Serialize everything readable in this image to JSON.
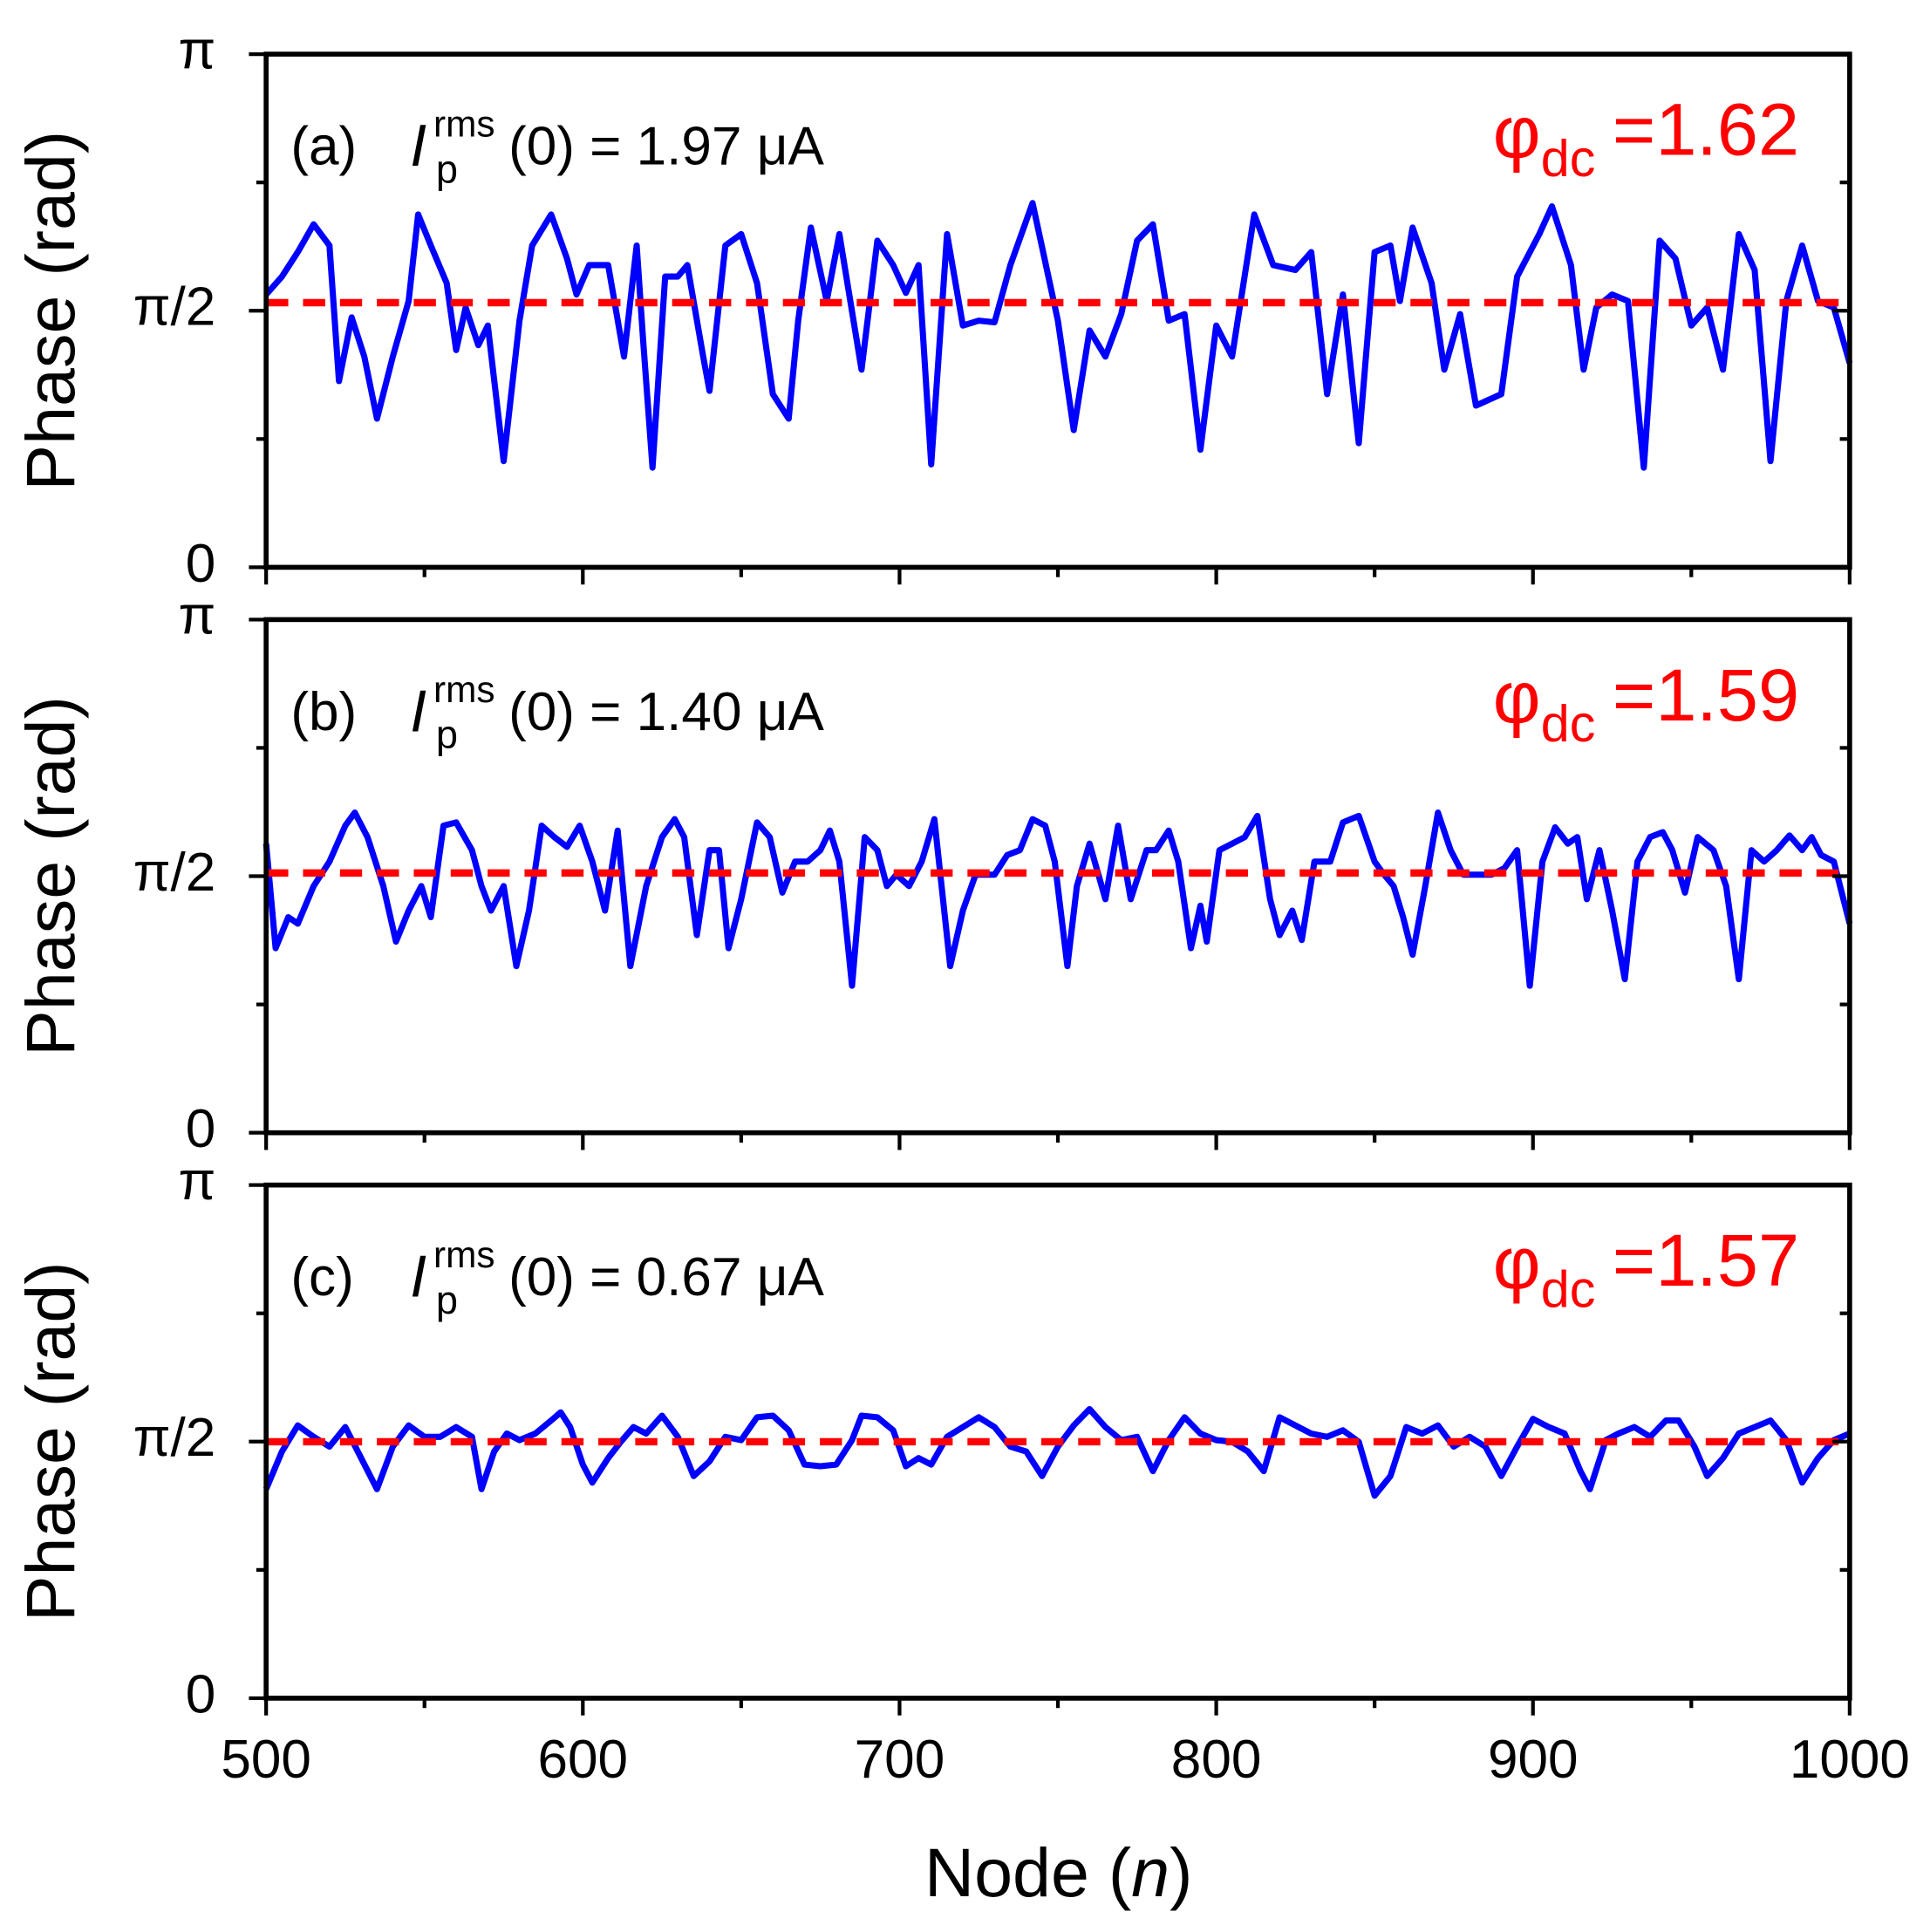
{
  "chart_data": [
    {
      "type": "line",
      "panel": "(a)",
      "current_label": {
        "symbol": "I",
        "sub": "p",
        "sup": "rms",
        "text": "(0) = 1.97 μA"
      },
      "dc_label": {
        "symbol": "φ",
        "sub": "dc"
      },
      "dc_line": {
        "value": 1.62,
        "label": "=1.62",
        "color": "#ff0000"
      },
      "ylabel": "Phase (rad)",
      "xlim": [
        500,
        1000
      ],
      "xticks": [
        500,
        600,
        700,
        800,
        900,
        1000
      ],
      "xminor": [
        550,
        650,
        750,
        850,
        950
      ],
      "ylim": [
        0,
        3.1416
      ],
      "yticks": [
        0,
        {
          "value": 1.5708,
          "label": "π/2"
        },
        {
          "value": 3.1416,
          "label": "π"
        }
      ],
      "yminor": [
        0.7854,
        2.3562
      ],
      "x": [
        500,
        505,
        510,
        515,
        520,
        523,
        527,
        531,
        535,
        540,
        545,
        548,
        552,
        557,
        560,
        563,
        567,
        570,
        575,
        580,
        584,
        590,
        595,
        598,
        602,
        608,
        613,
        617,
        619,
        622,
        626,
        630,
        633,
        638,
        640,
        645,
        650,
        655,
        660,
        665,
        668,
        672,
        677,
        681,
        688,
        693,
        698,
        702,
        706,
        710,
        715,
        720,
        725,
        730,
        735,
        742,
        750,
        755,
        760,
        765,
        770,
        775,
        780,
        785,
        790,
        795,
        800,
        805,
        812,
        818,
        825,
        830,
        835,
        840,
        845,
        850,
        855,
        858,
        862,
        868,
        872,
        877,
        882,
        890,
        895,
        902,
        906,
        912,
        916,
        920,
        925,
        930,
        935,
        940,
        945,
        950,
        955,
        960,
        965,
        970,
        975,
        980,
        985,
        990,
        995,
        1000
      ],
      "series": [
        {
          "color": "#0000ff",
          "values": [
            1.67,
            1.78,
            1.93,
            2.1,
            1.97,
            1.14,
            1.53,
            1.29,
            0.91,
            1.29,
            1.63,
            2.16,
            1.97,
            1.74,
            1.33,
            1.59,
            1.36,
            1.48,
            0.65,
            1.51,
            1.97,
            2.16,
            1.89,
            1.67,
            1.85,
            1.85,
            1.29,
            1.97,
            1.4,
            0.61,
            1.78,
            1.78,
            1.85,
            1.29,
            1.08,
            1.97,
            2.04,
            1.74,
            1.06,
            0.91,
            1.51,
            2.08,
            1.63,
            2.04,
            1.21,
            2.0,
            1.85,
            1.68,
            1.85,
            0.63,
            2.04,
            1.48,
            1.51,
            1.5,
            1.85,
            2.23,
            1.51,
            0.84,
            1.45,
            1.29,
            1.55,
            2.0,
            2.1,
            1.51,
            1.55,
            0.72,
            1.48,
            1.29,
            2.16,
            1.85,
            1.82,
            1.93,
            1.06,
            1.67,
            0.76,
            1.93,
            1.97,
            1.63,
            2.08,
            1.74,
            1.21,
            1.55,
            0.99,
            1.06,
            1.78,
            2.04,
            2.21,
            1.85,
            1.21,
            1.59,
            1.67,
            1.63,
            0.61,
            2.0,
            1.89,
            1.48,
            1.59,
            1.21,
            2.04,
            1.82,
            0.65,
            1.63,
            1.97,
            1.63,
            1.59,
            1.25
          ]
        }
      ]
    },
    {
      "type": "line",
      "panel": "(b)",
      "current_label": {
        "symbol": "I",
        "sub": "p",
        "sup": "rms",
        "text": "(0) = 1.40 μA"
      },
      "dc_label": {
        "symbol": "φ",
        "sub": "dc"
      },
      "dc_line": {
        "value": 1.59,
        "label": "=1.59",
        "color": "#ff0000"
      },
      "ylabel": "Phase (rad)",
      "xlim": [
        500,
        1000
      ],
      "xticks": [
        500,
        600,
        700,
        800,
        900,
        1000
      ],
      "xminor": [
        550,
        650,
        750,
        850,
        950
      ],
      "ylim": [
        0,
        3.1416
      ],
      "yticks": [
        0,
        {
          "value": 1.5708,
          "label": "π/2"
        },
        {
          "value": 3.1416,
          "label": "π"
        }
      ],
      "yminor": [
        0.7854,
        2.3562
      ],
      "x": [
        500,
        503,
        507,
        510,
        515,
        520,
        525,
        528,
        532,
        537,
        541,
        545,
        549,
        552,
        556,
        560,
        565,
        568,
        571,
        575,
        579,
        583,
        587,
        591,
        595,
        599,
        603,
        607,
        611,
        615,
        620,
        625,
        629,
        632,
        636,
        640,
        643,
        646,
        650,
        655,
        659,
        663,
        667,
        671,
        675,
        678,
        681,
        685,
        689,
        693,
        696,
        699,
        703,
        707,
        711,
        716,
        720,
        724,
        730,
        734,
        738,
        742,
        746,
        749,
        753,
        756,
        760,
        765,
        769,
        773,
        778,
        781,
        785,
        788,
        792,
        795,
        797,
        801,
        805,
        809,
        813,
        817,
        820,
        824,
        827,
        831,
        836,
        840,
        845,
        850,
        853,
        856,
        859,
        862,
        866,
        870,
        874,
        878,
        882,
        887,
        891,
        895,
        899,
        903,
        907,
        911,
        914,
        917,
        921,
        925,
        929,
        933,
        937,
        941,
        944,
        948,
        952,
        957,
        961,
        965,
        969,
        973,
        977,
        981,
        985,
        988,
        991,
        995,
        1000
      ],
      "series": [
        {
          "color": "#0000ff",
          "values": [
            1.77,
            1.13,
            1.32,
            1.28,
            1.51,
            1.66,
            1.88,
            1.96,
            1.81,
            1.51,
            1.17,
            1.36,
            1.51,
            1.32,
            1.88,
            1.9,
            1.73,
            1.51,
            1.36,
            1.51,
            1.02,
            1.36,
            1.88,
            1.81,
            1.75,
            1.88,
            1.66,
            1.36,
            1.85,
            1.02,
            1.51,
            1.81,
            1.92,
            1.81,
            1.21,
            1.73,
            1.73,
            1.13,
            1.43,
            1.9,
            1.81,
            1.47,
            1.66,
            1.66,
            1.73,
            1.85,
            1.66,
            0.9,
            1.81,
            1.73,
            1.51,
            1.58,
            1.51,
            1.66,
            1.92,
            1.02,
            1.36,
            1.58,
            1.58,
            1.7,
            1.73,
            1.92,
            1.88,
            1.66,
            1.02,
            1.51,
            1.77,
            1.43,
            1.88,
            1.43,
            1.73,
            1.73,
            1.85,
            1.66,
            1.13,
            1.39,
            1.17,
            1.73,
            1.77,
            1.81,
            1.94,
            1.43,
            1.21,
            1.36,
            1.18,
            1.66,
            1.66,
            1.9,
            1.94,
            1.66,
            1.58,
            1.51,
            1.32,
            1.09,
            1.51,
            1.96,
            1.73,
            1.58,
            1.58,
            1.58,
            1.62,
            1.73,
            0.9,
            1.66,
            1.87,
            1.77,
            1.81,
            1.43,
            1.73,
            1.36,
            0.94,
            1.66,
            1.81,
            1.84,
            1.73,
            1.47,
            1.81,
            1.73,
            1.51,
            0.94,
            1.73,
            1.66,
            1.73,
            1.82,
            1.73,
            1.81,
            1.7,
            1.66,
            1.28
          ]
        }
      ]
    },
    {
      "type": "line",
      "panel": "(c)",
      "current_label": {
        "symbol": "I",
        "sub": "p",
        "sup": "rms",
        "text": "(0) = 0.67 μA"
      },
      "dc_label": {
        "symbol": "φ",
        "sub": "dc"
      },
      "dc_line": {
        "value": 1.57,
        "label": "=1.57",
        "color": "#ff0000"
      },
      "ylabel": "Phase (rad)",
      "xlabel": {
        "text": "Node (",
        "var": "n",
        "close": ")"
      },
      "xlim": [
        500,
        1000
      ],
      "xticks": [
        500,
        600,
        700,
        800,
        900,
        1000
      ],
      "xminor": [
        550,
        650,
        750,
        850,
        950
      ],
      "ylim": [
        0,
        3.1416
      ],
      "yticks": [
        0,
        {
          "value": 1.5708,
          "label": "π/2"
        },
        {
          "value": 3.1416,
          "label": "π"
        }
      ],
      "yminor": [
        0.7854,
        2.3562
      ],
      "x": [
        500,
        505,
        510,
        515,
        520,
        525,
        530,
        535,
        540,
        545,
        550,
        555,
        560,
        565,
        568,
        572,
        576,
        580,
        585,
        590,
        593,
        596,
        600,
        603,
        608,
        612,
        616,
        620,
        625,
        630,
        635,
        640,
        645,
        650,
        655,
        660,
        665,
        670,
        675,
        680,
        685,
        688,
        693,
        698,
        702,
        706,
        710,
        715,
        720,
        725,
        730,
        735,
        740,
        745,
        750,
        755,
        760,
        765,
        770,
        775,
        780,
        785,
        790,
        795,
        800,
        805,
        810,
        815,
        820,
        825,
        830,
        835,
        840,
        845,
        850,
        855,
        860,
        865,
        870,
        875,
        880,
        885,
        890,
        895,
        900,
        905,
        910,
        915,
        918,
        923,
        927,
        932,
        937,
        942,
        946,
        951,
        955,
        960,
        965,
        970,
        975,
        980,
        985,
        990,
        995,
        1000
      ],
      "series": [
        {
          "color": "#0000ff",
          "values": [
            1.28,
            1.51,
            1.67,
            1.6,
            1.54,
            1.66,
            1.47,
            1.28,
            1.54,
            1.67,
            1.6,
            1.6,
            1.66,
            1.6,
            1.28,
            1.51,
            1.62,
            1.58,
            1.62,
            1.7,
            1.75,
            1.66,
            1.43,
            1.32,
            1.47,
            1.57,
            1.66,
            1.62,
            1.73,
            1.6,
            1.36,
            1.45,
            1.6,
            1.58,
            1.72,
            1.73,
            1.64,
            1.43,
            1.42,
            1.43,
            1.58,
            1.73,
            1.72,
            1.64,
            1.42,
            1.47,
            1.43,
            1.6,
            1.66,
            1.72,
            1.66,
            1.54,
            1.51,
            1.36,
            1.54,
            1.67,
            1.77,
            1.66,
            1.58,
            1.6,
            1.39,
            1.58,
            1.72,
            1.62,
            1.58,
            1.57,
            1.51,
            1.39,
            1.72,
            1.67,
            1.62,
            1.6,
            1.64,
            1.57,
            1.24,
            1.36,
            1.66,
            1.62,
            1.67,
            1.54,
            1.6,
            1.54,
            1.36,
            1.54,
            1.71,
            1.66,
            1.62,
            1.39,
            1.28,
            1.58,
            1.62,
            1.66,
            1.6,
            1.7,
            1.7,
            1.54,
            1.36,
            1.47,
            1.62,
            1.66,
            1.7,
            1.58,
            1.32,
            1.47,
            1.58,
            1.62
          ]
        }
      ]
    }
  ]
}
